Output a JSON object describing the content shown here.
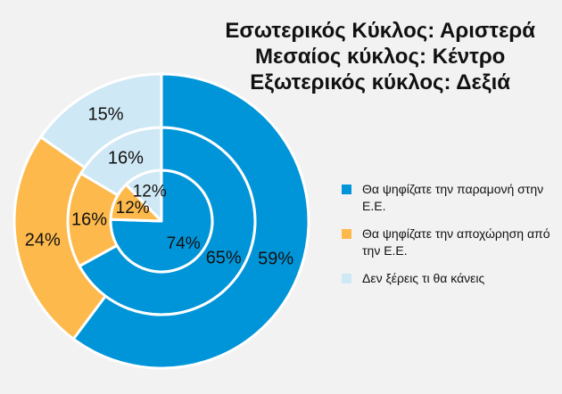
{
  "title": {
    "line1": "Εσωτερικός Κύκλος: Αριστερά",
    "line2": "Μεσαίος κύκλος: Κέντρο",
    "line3": "Εξωτερικός κύκλος: Δεξιά"
  },
  "legend": {
    "placement": "right",
    "items": [
      {
        "label": "Θα ψηφίζατε την παραμονή στην Ε.Ε.",
        "color": "#0095d9"
      },
      {
        "label": "Θα ψηφίζατε την αποχώρηση από την Ε.Ε.",
        "color": "#fdb94b"
      },
      {
        "label": "Δεν ξέρεις τι θα κάνεις",
        "color": "#cfe8f5"
      }
    ]
  },
  "chart_data": {
    "type": "pie",
    "subtype": "nested-donut",
    "categories": [
      "Θα ψηφίζατε την παραμονή στην Ε.Ε.",
      "Θα ψηφίζατε την αποχώρηση από την Ε.Ε.",
      "Δεν ξέρεις τι θα κάνεις"
    ],
    "colors": [
      "#0095d9",
      "#fdb94b",
      "#cfe8f5"
    ],
    "series": [
      {
        "name": "Αριστερά",
        "ring": "inner",
        "values": [
          74,
          12,
          12
        ],
        "labels": [
          "74%",
          "12%",
          "12%"
        ]
      },
      {
        "name": "Κέντρο",
        "ring": "middle",
        "values": [
          65,
          16,
          16
        ],
        "labels": [
          "65%",
          "16%",
          "16%"
        ]
      },
      {
        "name": "Δεξιά",
        "ring": "outer",
        "values": [
          59,
          24,
          15
        ],
        "labels": [
          "59%",
          "24%",
          "15%"
        ]
      }
    ],
    "start_angle": "12 o'clock",
    "direction": "clockwise",
    "grid": false
  }
}
